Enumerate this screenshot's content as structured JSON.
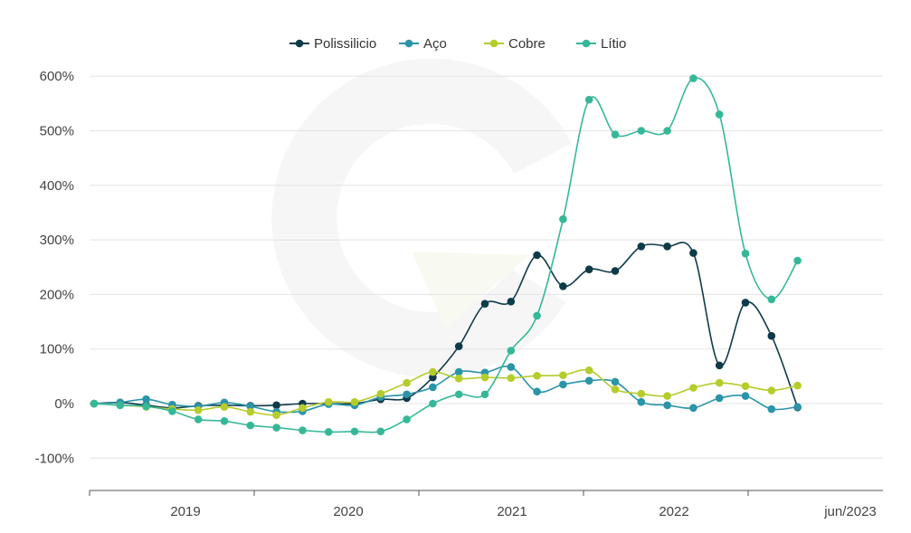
{
  "chart_data": {
    "type": "line",
    "x": [
      "2018-07",
      "2018-09",
      "2018-11",
      "2019-01",
      "2019-03",
      "2019-05",
      "2019-07",
      "2019-09",
      "2019-11",
      "2020-01",
      "2020-03",
      "2020-05",
      "2020-07",
      "2020-09",
      "2020-11",
      "2021-01",
      "2021-03",
      "2021-05",
      "2021-07",
      "2021-09",
      "2021-11",
      "2022-01",
      "2022-03",
      "2022-05",
      "2022-07",
      "2022-09",
      "2022-11",
      "2023-01",
      "2023-03",
      "2023-05",
      "2023-06"
    ],
    "y_ticks": [
      "600%",
      "500%",
      "400%",
      "300%",
      "200%",
      "100%",
      "0%",
      "-100%"
    ],
    "y_tick_values": [
      600,
      500,
      400,
      300,
      200,
      100,
      0,
      -100
    ],
    "ylim": [
      -150,
      650
    ],
    "x_tick_labels": [
      "2019",
      "2020",
      "2021",
      "2022",
      "jun/2023"
    ],
    "grid": true,
    "legend_position": "top-center",
    "series": [
      {
        "name": "Polissilicio",
        "color": "#0e3b4a",
        "values": [
          0,
          2,
          -3,
          -8,
          -4,
          -3,
          -4,
          -3,
          0,
          0,
          0,
          8,
          10,
          48,
          105,
          183,
          187,
          272,
          215,
          246,
          243,
          288,
          288,
          276,
          70,
          185,
          124,
          -7,
          null,
          null,
          null
        ]
      },
      {
        "name": "Aço",
        "color": "#2a94a8",
        "values": [
          0,
          2,
          8,
          -2,
          -5,
          2,
          -5,
          -15,
          -14,
          -1,
          -3,
          12,
          17,
          30,
          58,
          57,
          67,
          22,
          35,
          42,
          40,
          3,
          -3,
          -8,
          10,
          14,
          -10,
          -6,
          null,
          null,
          null
        ]
      },
      {
        "name": "Cobre",
        "color": "#b5cc2b",
        "values": [
          0,
          -3,
          -6,
          -10,
          -12,
          -6,
          -15,
          -21,
          -8,
          3,
          3,
          18,
          38,
          58,
          46,
          48,
          47,
          51,
          52,
          61,
          26,
          18,
          14,
          29,
          38,
          32,
          24,
          33,
          null,
          null,
          null
        ]
      },
      {
        "name": "Lítio",
        "color": "#35b898",
        "values": [
          0,
          -3,
          -5,
          -14,
          -29,
          -32,
          -40,
          -44,
          -49,
          -52,
          -51,
          -51,
          -29,
          0,
          17,
          17,
          97,
          161,
          338,
          557,
          493,
          500,
          500,
          596,
          530,
          275,
          191,
          262,
          null,
          null,
          null
        ]
      }
    ]
  }
}
